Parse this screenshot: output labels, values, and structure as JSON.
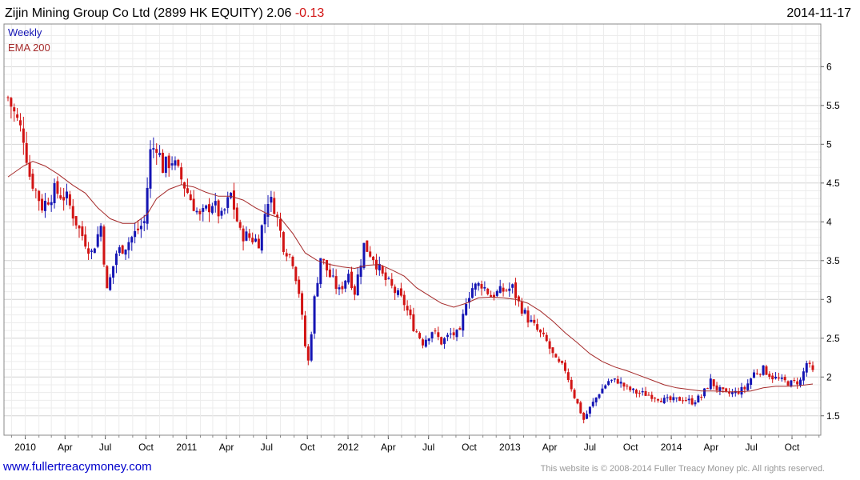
{
  "header": {
    "title": "Zijin Mining Group Co Ltd (2899 HK EQUITY)",
    "last": "2.06",
    "change": "-0.13",
    "date": "2014-11-17"
  },
  "legend": {
    "weekly": "Weekly",
    "ema": "EMA 200"
  },
  "footer": {
    "link": "www.fullertreacymoney.com",
    "copyright": "This website is © 2008-2014 Fuller Treacy Money plc. All rights reserved."
  },
  "colors": {
    "up": "#1515b4",
    "down": "#d21414",
    "ema": "#a52a2a",
    "grid": "#dcdcdc",
    "title_change": "#d21414",
    "weekly_label": "#1515b4",
    "ema_label": "#a52a2a"
  },
  "chart_data": {
    "type": "candlestick",
    "frequency": "weekly",
    "y_ticks": [
      "1.5",
      "2",
      "2.5",
      "3",
      "3.5",
      "4",
      "4.5",
      "5",
      "5.5",
      "6"
    ],
    "ylim": [
      1.25,
      6.55
    ],
    "x_ticks": [
      "2010",
      "Apr",
      "Jul",
      "Oct",
      "2011",
      "Apr",
      "Jul",
      "Oct",
      "2012",
      "Apr",
      "Jul",
      "Oct",
      "2013",
      "Apr",
      "Jul",
      "Oct",
      "2014",
      "Apr",
      "Jul",
      "Oct"
    ],
    "x_range": [
      "2009-11-23",
      "2014-11-17"
    ],
    "close_path": [
      [
        "2009-11-23",
        5.6
      ],
      [
        "2009-12-28",
        5.1
      ],
      [
        "2010-01-11",
        4.6
      ],
      [
        "2010-02-08",
        4.2
      ],
      [
        "2010-03-08",
        4.4
      ],
      [
        "2010-04-05",
        4.3
      ],
      [
        "2010-05-03",
        3.9
      ],
      [
        "2010-05-31",
        3.6
      ],
      [
        "2010-06-21",
        3.95
      ],
      [
        "2010-07-05",
        3.1
      ],
      [
        "2010-07-26",
        3.6
      ],
      [
        "2010-08-16",
        3.7
      ],
      [
        "2010-09-06",
        3.85
      ],
      [
        "2010-09-27",
        4.0
      ],
      [
        "2010-10-11",
        4.9
      ],
      [
        "2010-10-25",
        5.0
      ],
      [
        "2010-11-08",
        4.7
      ],
      [
        "2010-11-29",
        4.8
      ],
      [
        "2010-12-20",
        4.55
      ],
      [
        "2011-01-10",
        4.3
      ],
      [
        "2011-01-31",
        4.05
      ],
      [
        "2011-02-28",
        4.25
      ],
      [
        "2011-03-21",
        4.05
      ],
      [
        "2011-04-11",
        4.35
      ],
      [
        "2011-05-02",
        3.85
      ],
      [
        "2011-05-23",
        3.8
      ],
      [
        "2011-06-13",
        3.75
      ],
      [
        "2011-07-04",
        4.3
      ],
      [
        "2011-07-18",
        4.2
      ],
      [
        "2011-08-08",
        3.7
      ],
      [
        "2011-08-29",
        3.5
      ],
      [
        "2011-09-12",
        3.1
      ],
      [
        "2011-09-26",
        2.4
      ],
      [
        "2011-10-03",
        2.2
      ],
      [
        "2011-10-17",
        3.0
      ],
      [
        "2011-10-31",
        3.55
      ],
      [
        "2011-11-21",
        3.3
      ],
      [
        "2011-12-12",
        3.1
      ],
      [
        "2012-01-02",
        3.35
      ],
      [
        "2012-01-16",
        3.1
      ],
      [
        "2012-02-06",
        3.7
      ],
      [
        "2012-02-27",
        3.55
      ],
      [
        "2012-03-19",
        3.3
      ],
      [
        "2012-04-09",
        3.15
      ],
      [
        "2012-05-07",
        2.95
      ],
      [
        "2012-05-28",
        2.65
      ],
      [
        "2012-06-18",
        2.45
      ],
      [
        "2012-07-09",
        2.6
      ],
      [
        "2012-07-30",
        2.45
      ],
      [
        "2012-08-20",
        2.55
      ],
      [
        "2012-09-10",
        2.55
      ],
      [
        "2012-09-24",
        3.0
      ],
      [
        "2012-10-08",
        3.15
      ],
      [
        "2012-10-29",
        3.2
      ],
      [
        "2012-11-19",
        3.05
      ],
      [
        "2012-12-10",
        3.1
      ],
      [
        "2013-01-07",
        3.15
      ],
      [
        "2013-01-21",
        2.95
      ],
      [
        "2013-02-11",
        2.75
      ],
      [
        "2013-03-04",
        2.6
      ],
      [
        "2013-03-25",
        2.45
      ],
      [
        "2013-04-15",
        2.2
      ],
      [
        "2013-05-06",
        2.1
      ],
      [
        "2013-05-27",
        1.75
      ],
      [
        "2013-06-17",
        1.45
      ],
      [
        "2013-07-01",
        1.6
      ],
      [
        "2013-07-22",
        1.8
      ],
      [
        "2013-08-12",
        1.95
      ],
      [
        "2013-09-02",
        1.95
      ],
      [
        "2013-09-23",
        1.85
      ],
      [
        "2013-10-14",
        1.8
      ],
      [
        "2013-11-04",
        1.78
      ],
      [
        "2013-11-25",
        1.75
      ],
      [
        "2013-12-16",
        1.7
      ],
      [
        "2014-01-06",
        1.7
      ],
      [
        "2014-01-27",
        1.72
      ],
      [
        "2014-02-17",
        1.68
      ],
      [
        "2014-03-10",
        1.75
      ],
      [
        "2014-03-31",
        1.95
      ],
      [
        "2014-04-14",
        1.85
      ],
      [
        "2014-05-05",
        1.78
      ],
      [
        "2014-05-26",
        1.8
      ],
      [
        "2014-06-16",
        1.85
      ],
      [
        "2014-07-07",
        2.05
      ],
      [
        "2014-07-28",
        2.1
      ],
      [
        "2014-08-18",
        2.0
      ],
      [
        "2014-09-08",
        1.95
      ],
      [
        "2014-09-29",
        1.92
      ],
      [
        "2014-10-20",
        1.95
      ],
      [
        "2014-11-03",
        2.18
      ],
      [
        "2014-11-17",
        2.06
      ]
    ],
    "ema_path": [
      [
        "2009-11-23",
        4.58
      ],
      [
        "2009-12-28",
        4.72
      ],
      [
        "2010-01-18",
        4.78
      ],
      [
        "2010-02-15",
        4.72
      ],
      [
        "2010-03-15",
        4.62
      ],
      [
        "2010-04-19",
        4.47
      ],
      [
        "2010-05-17",
        4.37
      ],
      [
        "2010-06-14",
        4.18
      ],
      [
        "2010-07-12",
        4.04
      ],
      [
        "2010-08-09",
        3.98
      ],
      [
        "2010-09-06",
        3.98
      ],
      [
        "2010-10-04",
        4.1
      ],
      [
        "2010-10-25",
        4.3
      ],
      [
        "2010-11-22",
        4.42
      ],
      [
        "2010-12-20",
        4.48
      ],
      [
        "2011-01-17",
        4.45
      ],
      [
        "2011-02-14",
        4.38
      ],
      [
        "2011-03-14",
        4.33
      ],
      [
        "2011-04-11",
        4.33
      ],
      [
        "2011-05-09",
        4.28
      ],
      [
        "2011-06-06",
        4.18
      ],
      [
        "2011-07-04",
        4.1
      ],
      [
        "2011-08-01",
        4.05
      ],
      [
        "2011-08-29",
        3.85
      ],
      [
        "2011-09-26",
        3.6
      ],
      [
        "2011-10-24",
        3.5
      ],
      [
        "2011-11-21",
        3.45
      ],
      [
        "2011-12-19",
        3.42
      ],
      [
        "2012-01-16",
        3.4
      ],
      [
        "2012-02-13",
        3.44
      ],
      [
        "2012-03-12",
        3.45
      ],
      [
        "2012-04-09",
        3.38
      ],
      [
        "2012-05-07",
        3.3
      ],
      [
        "2012-06-04",
        3.15
      ],
      [
        "2012-07-02",
        3.05
      ],
      [
        "2012-07-30",
        2.95
      ],
      [
        "2012-08-27",
        2.9
      ],
      [
        "2012-09-24",
        2.95
      ],
      [
        "2012-10-22",
        3.02
      ],
      [
        "2012-11-19",
        3.03
      ],
      [
        "2012-12-17",
        3.02
      ],
      [
        "2013-01-14",
        3.0
      ],
      [
        "2013-02-11",
        2.95
      ],
      [
        "2013-03-11",
        2.85
      ],
      [
        "2013-04-08",
        2.72
      ],
      [
        "2013-05-06",
        2.57
      ],
      [
        "2013-06-03",
        2.44
      ],
      [
        "2013-07-01",
        2.3
      ],
      [
        "2013-07-29",
        2.2
      ],
      [
        "2013-08-26",
        2.13
      ],
      [
        "2013-09-23",
        2.08
      ],
      [
        "2013-10-21",
        2.02
      ],
      [
        "2013-11-18",
        1.96
      ],
      [
        "2013-12-16",
        1.9
      ],
      [
        "2014-01-13",
        1.86
      ],
      [
        "2014-02-10",
        1.84
      ],
      [
        "2014-03-10",
        1.82
      ],
      [
        "2014-04-07",
        1.82
      ],
      [
        "2014-05-05",
        1.81
      ],
      [
        "2014-06-02",
        1.81
      ],
      [
        "2014-06-30",
        1.82
      ],
      [
        "2014-07-28",
        1.86
      ],
      [
        "2014-08-25",
        1.88
      ],
      [
        "2014-09-22",
        1.88
      ],
      [
        "2014-10-20",
        1.89
      ],
      [
        "2014-11-17",
        1.91
      ]
    ]
  }
}
